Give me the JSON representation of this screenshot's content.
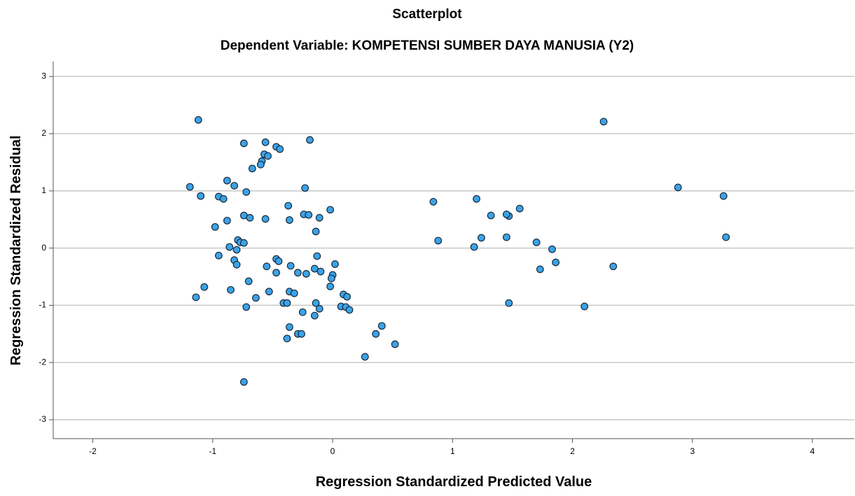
{
  "chart_data": {
    "type": "scatter",
    "title": "Scatterplot",
    "subtitle": "Dependent Variable: KOMPETENSI SUMBER DAYA MANUSIA (Y2)",
    "x_label": "Regression Standardized Predicted Value",
    "y_label": "Regression Standardized Residual",
    "xlim": [
      -2.33,
      4.35
    ],
    "ylim": [
      -3.33,
      3.26
    ],
    "xticks": [
      -2,
      -1,
      0,
      1,
      2,
      3,
      4
    ],
    "yticks": [
      -3,
      -2,
      -1,
      0,
      1,
      2,
      3
    ],
    "grid": true,
    "color": "#3ba3e8",
    "x": [
      -1.12,
      2.26,
      -0.74,
      -0.56,
      -0.19,
      -0.47,
      -0.44,
      -0.57,
      -0.54,
      -0.59,
      -0.6,
      -0.67,
      -1.19,
      -0.88,
      -0.82,
      -0.23,
      -0.72,
      -1.1,
      -0.95,
      -0.91,
      2.88,
      3.26,
      0.84,
      1.2,
      -0.37,
      1.56,
      -0.02,
      -0.24,
      -0.2,
      1.32,
      1.47,
      1.45,
      -0.74,
      -0.69,
      -0.88,
      -0.56,
      -0.36,
      -0.11,
      -0.98,
      -0.14,
      1.24,
      1.45,
      3.28,
      0.88,
      1.7,
      -0.79,
      -0.77,
      -0.74,
      1.18,
      1.83,
      -0.86,
      -0.8,
      -0.95,
      -0.13,
      -0.47,
      -0.82,
      -0.45,
      -0.8,
      0.02,
      1.86,
      -0.55,
      -0.35,
      2.34,
      1.73,
      -0.15,
      -0.29,
      -0.47,
      -0.22,
      -0.1,
      0,
      -0.01,
      -0.02,
      -0.7,
      -1.07,
      -0.85,
      -0.53,
      -0.36,
      -0.32,
      0.09,
      0.12,
      -1.14,
      -0.64,
      -0.41,
      -0.38,
      -0.14,
      1.47,
      -0.72,
      0.07,
      0.11,
      -0.11,
      0.14,
      2.1,
      -0.25,
      -0.15,
      0.41,
      -0.36,
      0.36,
      -0.29,
      -0.26,
      -0.38,
      0.52,
      0.27,
      -0.74
    ],
    "values": [
      2.24,
      2.21,
      1.83,
      1.85,
      1.89,
      1.77,
      1.73,
      1.64,
      1.61,
      1.52,
      1.46,
      1.39,
      1.07,
      1.18,
      1.09,
      1.05,
      0.98,
      0.91,
      0.9,
      0.86,
      1.06,
      0.91,
      0.81,
      0.86,
      0.74,
      0.69,
      0.67,
      0.59,
      0.58,
      0.57,
      0.56,
      0.59,
      0.57,
      0.53,
      0.48,
      0.51,
      0.49,
      0.53,
      0.37,
      0.29,
      0.18,
      0.19,
      0.19,
      0.13,
      0.1,
      0.14,
      0.1,
      0.09,
      0.02,
      -0.02,
      0.02,
      -0.03,
      -0.13,
      -0.14,
      -0.19,
      -0.21,
      -0.23,
      -0.29,
      -0.28,
      -0.25,
      -0.32,
      -0.31,
      -0.32,
      -0.37,
      -0.36,
      -0.43,
      -0.43,
      -0.45,
      -0.41,
      -0.47,
      -0.53,
      -0.67,
      -0.58,
      -0.68,
      -0.73,
      -0.76,
      -0.76,
      -0.79,
      -0.81,
      -0.85,
      -0.86,
      -0.87,
      -0.96,
      -0.96,
      -0.96,
      -0.96,
      -1.03,
      -1.02,
      -1.03,
      -1.06,
      -1.08,
      -1.02,
      -1.12,
      -1.18,
      -1.36,
      -1.38,
      -1.5,
      -1.5,
      -1.5,
      -1.58,
      -1.68,
      -1.9,
      -2.34
    ]
  }
}
